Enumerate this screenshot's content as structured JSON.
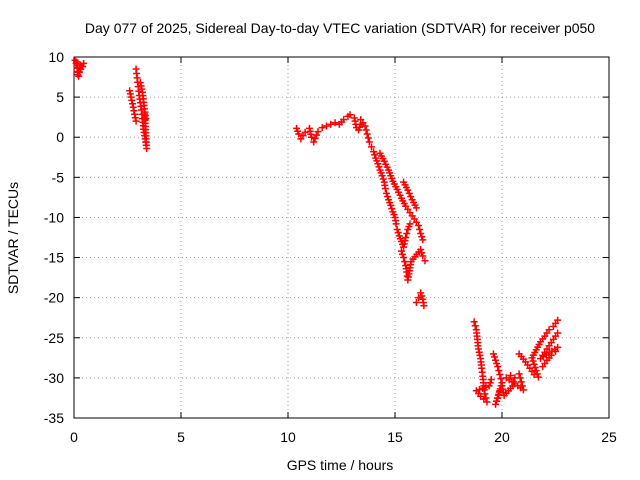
{
  "chart_data": {
    "type": "scatter",
    "title": "Day 077 of 2025, Sidereal Day-to-day VTEC variation (SDTVAR) for receiver p050",
    "xlabel": "GPS time / hours",
    "ylabel": "SDTVAR / TECUs",
    "xlim": [
      0,
      25
    ],
    "ylim": [
      -35,
      10
    ],
    "xticks": [
      0,
      5,
      10,
      15,
      20,
      25
    ],
    "yticks": [
      10,
      5,
      0,
      -5,
      -10,
      -15,
      -20,
      -25,
      -30,
      -35
    ],
    "grid": true,
    "marker": "+",
    "series_color": "#ff0000",
    "segments": [
      {
        "name": "seg-1",
        "points": [
          [
            0.05,
            9.6
          ],
          [
            0.1,
            9.2
          ],
          [
            0.15,
            8.7
          ],
          [
            0.2,
            8.1
          ],
          [
            0.22,
            7.6
          ],
          [
            0.3,
            9.0
          ],
          [
            0.4,
            8.8
          ],
          [
            0.45,
            9.2
          ],
          [
            0.18,
            7.8
          ],
          [
            0.12,
            9.4
          ]
        ]
      },
      {
        "name": "seg-2",
        "points": [
          [
            2.6,
            5.8
          ],
          [
            2.7,
            4.6
          ],
          [
            2.8,
            3.3
          ],
          [
            2.9,
            2.0
          ],
          [
            2.9,
            8.5
          ],
          [
            2.95,
            7.4
          ],
          [
            3.0,
            6.3
          ],
          [
            3.05,
            5.2
          ],
          [
            3.1,
            4.3
          ],
          [
            3.15,
            3.4
          ],
          [
            3.2,
            2.3
          ],
          [
            3.25,
            1.0
          ],
          [
            3.3,
            0.2
          ],
          [
            3.35,
            -0.6
          ],
          [
            3.4,
            -1.4
          ],
          [
            3.3,
            2.9
          ],
          [
            3.35,
            2.3
          ],
          [
            3.2,
            5.6
          ],
          [
            3.1,
            6.8
          ]
        ]
      },
      {
        "name": "seg-3",
        "points": [
          [
            10.4,
            1.1
          ],
          [
            10.5,
            0.4
          ],
          [
            10.6,
            -0.2
          ],
          [
            10.8,
            0.6
          ],
          [
            11.0,
            1.1
          ],
          [
            11.1,
            0.0
          ],
          [
            11.2,
            -0.6
          ],
          [
            11.4,
            0.7
          ],
          [
            11.6,
            1.2
          ],
          [
            11.8,
            1.4
          ],
          [
            12.0,
            1.6
          ],
          [
            12.2,
            1.8
          ],
          [
            12.4,
            1.6
          ],
          [
            12.6,
            2.2
          ],
          [
            12.8,
            2.6
          ],
          [
            12.9,
            2.8
          ],
          [
            13.1,
            2.4
          ],
          [
            13.2,
            1.2
          ],
          [
            13.3,
            0.9
          ],
          [
            13.4,
            1.6
          ]
        ]
      },
      {
        "name": "seg-4",
        "points": [
          [
            13.4,
            2.2
          ],
          [
            13.6,
            1.4
          ],
          [
            13.7,
            0.4
          ],
          [
            13.8,
            -0.6
          ],
          [
            13.9,
            -1.2
          ],
          [
            14.0,
            -1.8
          ],
          [
            14.1,
            -2.6
          ],
          [
            14.2,
            -3.3
          ],
          [
            14.3,
            -4.1
          ],
          [
            14.4,
            -4.8
          ],
          [
            14.5,
            -5.6
          ],
          [
            14.55,
            -6.4
          ],
          [
            14.6,
            -7.0
          ],
          [
            14.7,
            -7.8
          ],
          [
            14.8,
            -8.5
          ],
          [
            14.9,
            -9.3
          ],
          [
            15.0,
            -10.0
          ],
          [
            15.05,
            -10.8
          ],
          [
            15.1,
            -11.5
          ],
          [
            15.2,
            -12.3
          ],
          [
            15.3,
            -13.0
          ],
          [
            15.4,
            -13.7
          ],
          [
            15.5,
            -12.5
          ],
          [
            15.6,
            -11.5
          ],
          [
            15.7,
            -10.8
          ],
          [
            14.3,
            -2.0
          ],
          [
            14.5,
            -3.0
          ],
          [
            14.7,
            -4.1
          ],
          [
            14.9,
            -5.5
          ],
          [
            15.1,
            -6.5
          ],
          [
            15.3,
            -7.6
          ],
          [
            15.5,
            -8.6
          ],
          [
            15.7,
            -9.4
          ],
          [
            15.9,
            -10.2
          ],
          [
            16.1,
            -11.0
          ],
          [
            16.2,
            -12.0
          ],
          [
            16.3,
            -12.8
          ],
          [
            15.4,
            -5.6
          ],
          [
            15.6,
            -6.6
          ],
          [
            15.8,
            -7.8
          ],
          [
            16.0,
            -8.8
          ]
        ]
      },
      {
        "name": "seg-5",
        "points": [
          [
            15.3,
            -14.2
          ],
          [
            15.4,
            -15.0
          ],
          [
            15.5,
            -16.0
          ],
          [
            15.55,
            -16.8
          ],
          [
            15.6,
            -17.8
          ],
          [
            15.75,
            -15.5
          ],
          [
            16.2,
            -14.0
          ],
          [
            16.3,
            -14.8
          ],
          [
            16.4,
            -15.4
          ],
          [
            16.0,
            -20.6
          ],
          [
            16.1,
            -20.0
          ],
          [
            16.2,
            -19.4
          ],
          [
            16.3,
            -20.2
          ],
          [
            16.35,
            -21.0
          ]
        ]
      },
      {
        "name": "seg-6",
        "points": [
          [
            18.7,
            -23.0
          ],
          [
            18.8,
            -24.0
          ],
          [
            18.85,
            -25.2
          ],
          [
            18.9,
            -26.4
          ],
          [
            19.0,
            -27.6
          ],
          [
            19.05,
            -28.8
          ],
          [
            19.1,
            -29.8
          ],
          [
            19.15,
            -31.0
          ],
          [
            19.2,
            -32.0
          ],
          [
            19.3,
            -33.0
          ],
          [
            19.0,
            -32.3
          ],
          [
            18.8,
            -31.6
          ],
          [
            19.4,
            -31.0
          ],
          [
            19.5,
            -30.2
          ]
        ]
      },
      {
        "name": "seg-7",
        "points": [
          [
            19.6,
            -27.0
          ],
          [
            19.7,
            -27.8
          ],
          [
            19.8,
            -28.6
          ],
          [
            19.9,
            -29.6
          ],
          [
            20.0,
            -30.6
          ],
          [
            19.7,
            -33.3
          ],
          [
            19.8,
            -32.5
          ],
          [
            19.9,
            -31.6
          ],
          [
            20.0,
            -31.0
          ],
          [
            20.1,
            -32.2
          ],
          [
            20.3,
            -31.6
          ],
          [
            20.5,
            -31.0
          ],
          [
            20.6,
            -30.0
          ],
          [
            20.8,
            -29.5
          ],
          [
            20.9,
            -30.5
          ],
          [
            21.0,
            -31.5
          ],
          [
            20.2,
            -30.0
          ],
          [
            20.4,
            -29.7
          ]
        ]
      },
      {
        "name": "seg-8",
        "points": [
          [
            20.8,
            -27.0
          ],
          [
            21.1,
            -28.0
          ],
          [
            21.3,
            -28.8
          ],
          [
            21.5,
            -29.6
          ],
          [
            21.7,
            -29.9
          ],
          [
            21.4,
            -27.5
          ],
          [
            21.6,
            -26.5
          ],
          [
            21.8,
            -25.5
          ],
          [
            22.0,
            -24.8
          ],
          [
            22.2,
            -24.0
          ],
          [
            22.4,
            -23.6
          ],
          [
            22.6,
            -22.8
          ],
          [
            21.9,
            -28.6
          ],
          [
            22.1,
            -27.8
          ],
          [
            22.3,
            -27.2
          ],
          [
            22.5,
            -26.7
          ],
          [
            22.6,
            -26.2
          ],
          [
            21.8,
            -27.6
          ],
          [
            22.0,
            -26.8
          ],
          [
            22.2,
            -26.0
          ],
          [
            22.4,
            -25.2
          ],
          [
            22.6,
            -24.4
          ]
        ]
      }
    ]
  }
}
